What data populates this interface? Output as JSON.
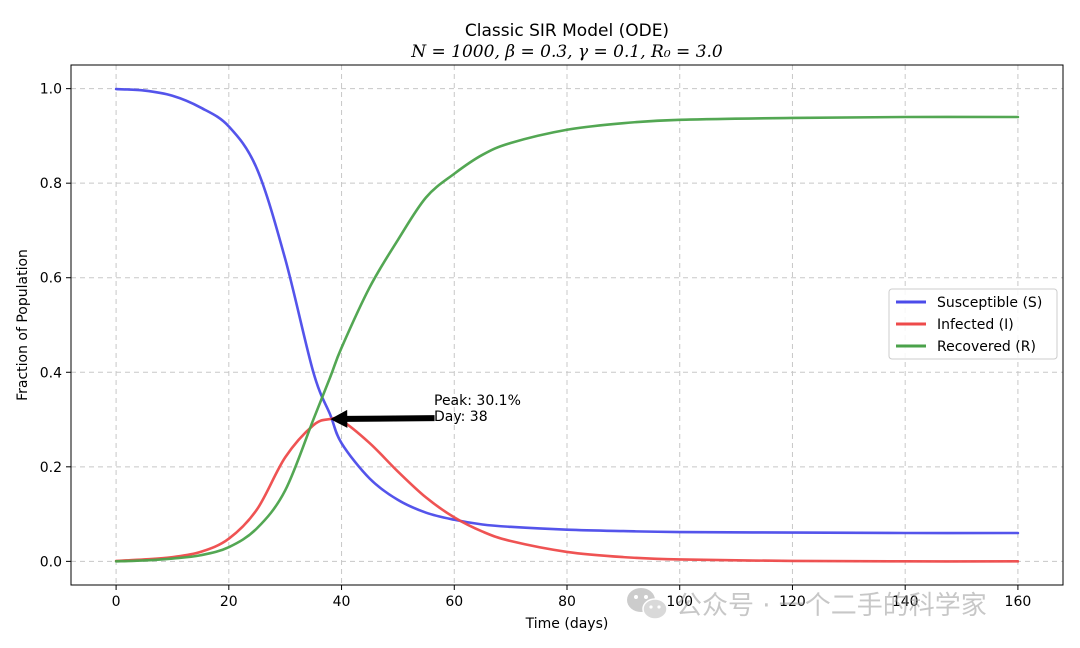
{
  "chart_data": {
    "type": "line",
    "title": "Classic SIR Model (ODE)",
    "subtitle": "N = 1000, β = 0.3, γ = 0.1, R₀ = 3.0",
    "xlabel": "Time (days)",
    "ylabel": "Fraction of Population",
    "xlim": [
      -8,
      168
    ],
    "ylim": [
      -0.05,
      1.05
    ],
    "xticks": [
      0,
      20,
      40,
      60,
      80,
      100,
      120,
      140,
      160
    ],
    "yticks": [
      0.0,
      0.2,
      0.4,
      0.6,
      0.8,
      1.0
    ],
    "xtick_labels": [
      "0",
      "20",
      "40",
      "60",
      "80",
      "100",
      "120",
      "140",
      "160"
    ],
    "ytick_labels": [
      "0.0",
      "0.2",
      "0.4",
      "0.6",
      "0.8",
      "1.0"
    ],
    "grid": true,
    "legend_position": "center-right",
    "x": [
      0,
      5,
      10,
      15,
      20,
      25,
      30,
      35,
      38,
      40,
      45,
      50,
      55,
      60,
      65,
      70,
      80,
      90,
      100,
      120,
      140,
      160
    ],
    "series": [
      {
        "name": "Susceptible (S)",
        "color": "#4b4bea",
        "values": [
          0.999,
          0.996,
          0.985,
          0.96,
          0.92,
          0.83,
          0.64,
          0.4,
          0.31,
          0.25,
          0.175,
          0.13,
          0.103,
          0.088,
          0.078,
          0.073,
          0.067,
          0.064,
          0.062,
          0.061,
          0.06,
          0.06
        ]
      },
      {
        "name": "Infected (I)",
        "color": "#ee4a4a",
        "values": [
          0.001,
          0.004,
          0.009,
          0.02,
          0.048,
          0.11,
          0.22,
          0.288,
          0.301,
          0.298,
          0.25,
          0.19,
          0.135,
          0.093,
          0.063,
          0.043,
          0.02,
          0.009,
          0.004,
          0.001,
          0.0,
          0.0
        ]
      },
      {
        "name": "Recovered (R)",
        "color": "#4aa24a",
        "values": [
          0.0,
          0.002,
          0.006,
          0.013,
          0.03,
          0.07,
          0.15,
          0.3,
          0.39,
          0.452,
          0.58,
          0.68,
          0.77,
          0.82,
          0.86,
          0.885,
          0.913,
          0.927,
          0.934,
          0.938,
          0.94,
          0.94
        ]
      }
    ],
    "annotation": {
      "line1": "Peak: 30.1%",
      "line2": "Day: 38",
      "point": [
        38,
        0.301
      ],
      "text_at": [
        58,
        0.31
      ]
    }
  },
  "watermark": {
    "text": "公众号 · 一个二手的科学家",
    "icon": "wechat-icon"
  }
}
